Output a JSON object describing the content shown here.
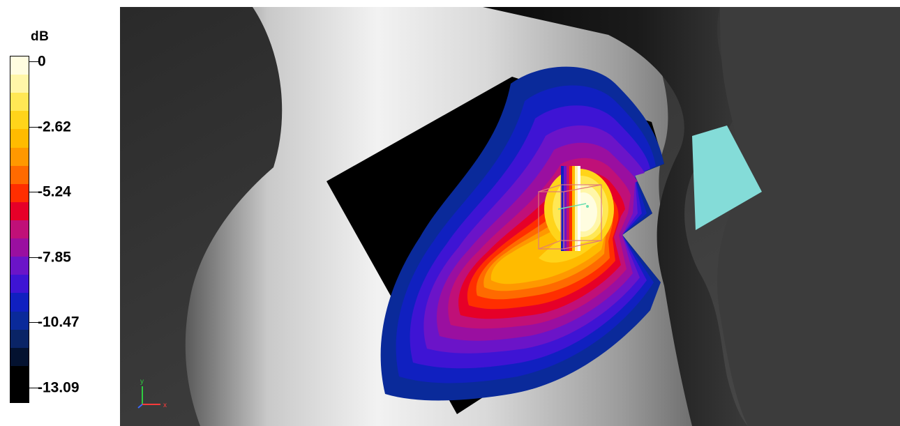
{
  "legend": {
    "unit": "dB",
    "ticks": [
      "0",
      "-2.62",
      "-5.24",
      "-7.85",
      "-10.47",
      "-13.09"
    ],
    "bands": [
      "#fffde0",
      "#fff6a8",
      "#ffe855",
      "#ffd41a",
      "#ffbb00",
      "#ff9800",
      "#ff6a00",
      "#ff2e00",
      "#e60028",
      "#c01078",
      "#9a0fa0",
      "#6b14c8",
      "#3e14d4",
      "#1020c0",
      "#0a2a9a",
      "#0a2466",
      "#041230",
      "#000000",
      "#000000"
    ]
  },
  "viewport": {
    "background": "#3a3a3a",
    "probe_color": "#e07a7a",
    "handset_face_color": "#84dcd8",
    "axes": {
      "x_label": "x",
      "y_label": "y"
    }
  }
}
